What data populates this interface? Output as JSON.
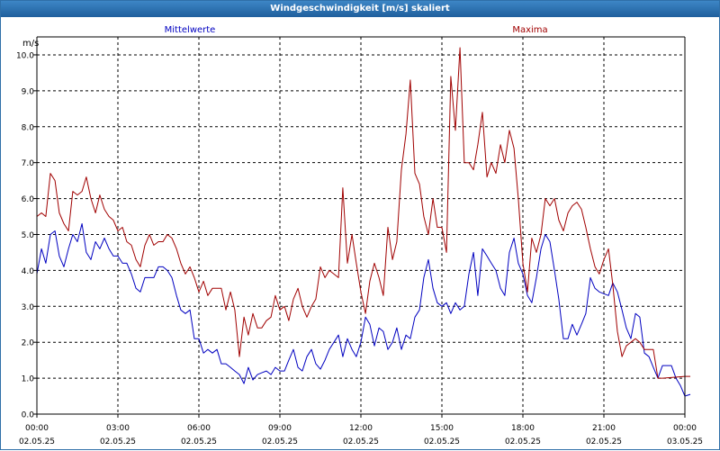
{
  "window": {
    "title": "Windgeschwindigkeit [m/s] skaliert"
  },
  "chart_data": {
    "type": "line",
    "title": "Windgeschwindigkeit [m/s] skaliert",
    "ylabel": "m/s",
    "xlabel": "",
    "ylim": [
      0,
      10.5
    ],
    "xlim": [
      0,
      24
    ],
    "grid": true,
    "x_ticks": [
      {
        "x": 0,
        "time": "00:00",
        "date": "02.05.25"
      },
      {
        "x": 3,
        "time": "03:00",
        "date": "02.05.25"
      },
      {
        "x": 6,
        "time": "06:00",
        "date": "02.05.25"
      },
      {
        "x": 9,
        "time": "09:00",
        "date": "02.05.25"
      },
      {
        "x": 12,
        "time": "12:00",
        "date": "02.05.25"
      },
      {
        "x": 15,
        "time": "15:00",
        "date": "02.05.25"
      },
      {
        "x": 18,
        "time": "18:00",
        "date": "02.05.25"
      },
      {
        "x": 21,
        "time": "21:00",
        "date": "02.05.25"
      },
      {
        "x": 24,
        "time": "00:00",
        "date": "03.05.25"
      }
    ],
    "y_ticks": [
      "0.0",
      "1.0",
      "2.0",
      "3.0",
      "4.0",
      "5.0",
      "6.0",
      "7.0",
      "8.0",
      "9.0",
      "10.0"
    ],
    "series": [
      {
        "name": "Mittelwerte",
        "color": "#0000c0",
        "points": [
          [
            0,
            3.9
          ],
          [
            0.17,
            4.6
          ],
          [
            0.33,
            4.2
          ],
          [
            0.5,
            5.0
          ],
          [
            0.67,
            5.1
          ],
          [
            0.83,
            4.4
          ],
          [
            1.0,
            4.1
          ],
          [
            1.17,
            4.6
          ],
          [
            1.33,
            5.0
          ],
          [
            1.5,
            4.8
          ],
          [
            1.67,
            5.3
          ],
          [
            1.83,
            4.5
          ],
          [
            2.0,
            4.3
          ],
          [
            2.17,
            4.8
          ],
          [
            2.33,
            4.6
          ],
          [
            2.5,
            4.9
          ],
          [
            2.67,
            4.6
          ],
          [
            2.83,
            4.4
          ],
          [
            3.0,
            4.4
          ],
          [
            3.17,
            4.2
          ],
          [
            3.33,
            4.2
          ],
          [
            3.5,
            3.9
          ],
          [
            3.67,
            3.5
          ],
          [
            3.83,
            3.4
          ],
          [
            4.0,
            3.8
          ],
          [
            4.17,
            3.8
          ],
          [
            4.33,
            3.8
          ],
          [
            4.5,
            4.1
          ],
          [
            4.67,
            4.1
          ],
          [
            4.83,
            4.0
          ],
          [
            5.0,
            3.8
          ],
          [
            5.17,
            3.3
          ],
          [
            5.33,
            2.9
          ],
          [
            5.5,
            2.8
          ],
          [
            5.67,
            2.9
          ],
          [
            5.83,
            2.1
          ],
          [
            6.0,
            2.1
          ],
          [
            6.17,
            1.7
          ],
          [
            6.33,
            1.8
          ],
          [
            6.5,
            1.7
          ],
          [
            6.67,
            1.8
          ],
          [
            6.83,
            1.4
          ],
          [
            7.0,
            1.4
          ],
          [
            7.17,
            1.3
          ],
          [
            7.33,
            1.2
          ],
          [
            7.5,
            1.1
          ],
          [
            7.67,
            0.85
          ],
          [
            7.83,
            1.3
          ],
          [
            8.0,
            0.95
          ],
          [
            8.17,
            1.1
          ],
          [
            8.33,
            1.15
          ],
          [
            8.5,
            1.2
          ],
          [
            8.67,
            1.1
          ],
          [
            8.83,
            1.3
          ],
          [
            9.0,
            1.2
          ],
          [
            9.17,
            1.2
          ],
          [
            9.33,
            1.5
          ],
          [
            9.5,
            1.8
          ],
          [
            9.67,
            1.3
          ],
          [
            9.83,
            1.2
          ],
          [
            10.0,
            1.6
          ],
          [
            10.17,
            1.8
          ],
          [
            10.33,
            1.4
          ],
          [
            10.5,
            1.25
          ],
          [
            10.67,
            1.5
          ],
          [
            10.83,
            1.8
          ],
          [
            11.0,
            2.0
          ],
          [
            11.17,
            2.2
          ],
          [
            11.33,
            1.6
          ],
          [
            11.5,
            2.1
          ],
          [
            11.67,
            1.8
          ],
          [
            11.83,
            1.6
          ],
          [
            12.0,
            2.0
          ],
          [
            12.17,
            2.7
          ],
          [
            12.33,
            2.5
          ],
          [
            12.5,
            1.9
          ],
          [
            12.67,
            2.4
          ],
          [
            12.83,
            2.3
          ],
          [
            13.0,
            1.8
          ],
          [
            13.17,
            2.0
          ],
          [
            13.33,
            2.4
          ],
          [
            13.5,
            1.8
          ],
          [
            13.67,
            2.2
          ],
          [
            13.83,
            2.1
          ],
          [
            14.0,
            2.7
          ],
          [
            14.17,
            2.9
          ],
          [
            14.33,
            3.8
          ],
          [
            14.5,
            4.3
          ],
          [
            14.67,
            3.5
          ],
          [
            14.83,
            3.1
          ],
          [
            15.0,
            3.0
          ],
          [
            15.17,
            3.1
          ],
          [
            15.33,
            2.8
          ],
          [
            15.5,
            3.1
          ],
          [
            15.67,
            2.9
          ],
          [
            15.83,
            3.0
          ],
          [
            16.0,
            3.9
          ],
          [
            16.17,
            4.5
          ],
          [
            16.33,
            3.3
          ],
          [
            16.5,
            4.6
          ],
          [
            16.67,
            4.4
          ],
          [
            16.83,
            4.2
          ],
          [
            17.0,
            4.0
          ],
          [
            17.17,
            3.5
          ],
          [
            17.33,
            3.3
          ],
          [
            17.5,
            4.5
          ],
          [
            17.67,
            4.9
          ],
          [
            17.83,
            4.2
          ],
          [
            18.0,
            3.9
          ],
          [
            18.17,
            3.3
          ],
          [
            18.33,
            3.1
          ],
          [
            18.5,
            3.8
          ],
          [
            18.67,
            4.6
          ],
          [
            18.83,
            5.0
          ],
          [
            19.0,
            4.8
          ],
          [
            19.17,
            4.0
          ],
          [
            19.33,
            3.2
          ],
          [
            19.5,
            2.1
          ],
          [
            19.67,
            2.1
          ],
          [
            19.83,
            2.5
          ],
          [
            20.0,
            2.2
          ],
          [
            20.17,
            2.5
          ],
          [
            20.33,
            2.8
          ],
          [
            20.5,
            3.8
          ],
          [
            20.67,
            3.5
          ],
          [
            20.83,
            3.4
          ],
          [
            21.0,
            3.35
          ],
          [
            21.17,
            3.3
          ],
          [
            21.33,
            3.65
          ],
          [
            21.5,
            3.4
          ],
          [
            21.67,
            2.9
          ],
          [
            21.83,
            2.4
          ],
          [
            22.0,
            2.1
          ],
          [
            22.17,
            2.8
          ],
          [
            22.33,
            2.7
          ],
          [
            22.5,
            1.7
          ],
          [
            22.67,
            1.6
          ],
          [
            22.83,
            1.3
          ],
          [
            23.0,
            1.0
          ],
          [
            23.17,
            1.35
          ],
          [
            23.33,
            1.35
          ],
          [
            23.5,
            1.35
          ],
          [
            23.67,
            1.0
          ],
          [
            23.83,
            0.8
          ],
          [
            24.0,
            0.5
          ],
          [
            24.2,
            0.55
          ]
        ]
      },
      {
        "name": "Maxima",
        "color": "#a00000",
        "points": [
          [
            0,
            5.5
          ],
          [
            0.17,
            5.6
          ],
          [
            0.33,
            5.5
          ],
          [
            0.5,
            6.7
          ],
          [
            0.67,
            6.5
          ],
          [
            0.83,
            5.6
          ],
          [
            1.0,
            5.3
          ],
          [
            1.17,
            5.1
          ],
          [
            1.33,
            6.2
          ],
          [
            1.5,
            6.1
          ],
          [
            1.67,
            6.2
          ],
          [
            1.83,
            6.6
          ],
          [
            2.0,
            6.0
          ],
          [
            2.17,
            5.6
          ],
          [
            2.33,
            6.1
          ],
          [
            2.5,
            5.7
          ],
          [
            2.67,
            5.5
          ],
          [
            2.83,
            5.4
          ],
          [
            3.0,
            5.1
          ],
          [
            3.17,
            5.2
          ],
          [
            3.33,
            4.8
          ],
          [
            3.5,
            4.7
          ],
          [
            3.67,
            4.3
          ],
          [
            3.83,
            4.1
          ],
          [
            4.0,
            4.7
          ],
          [
            4.17,
            5.0
          ],
          [
            4.33,
            4.7
          ],
          [
            4.5,
            4.8
          ],
          [
            4.67,
            4.8
          ],
          [
            4.83,
            5.0
          ],
          [
            5.0,
            4.9
          ],
          [
            5.17,
            4.6
          ],
          [
            5.33,
            4.2
          ],
          [
            5.5,
            3.9
          ],
          [
            5.67,
            4.1
          ],
          [
            5.83,
            3.8
          ],
          [
            6.0,
            3.4
          ],
          [
            6.17,
            3.7
          ],
          [
            6.33,
            3.3
          ],
          [
            6.5,
            3.5
          ],
          [
            6.67,
            3.5
          ],
          [
            6.83,
            3.5
          ],
          [
            7.0,
            2.9
          ],
          [
            7.17,
            3.4
          ],
          [
            7.33,
            2.9
          ],
          [
            7.5,
            1.6
          ],
          [
            7.67,
            2.7
          ],
          [
            7.83,
            2.2
          ],
          [
            8.0,
            2.8
          ],
          [
            8.17,
            2.4
          ],
          [
            8.33,
            2.4
          ],
          [
            8.5,
            2.6
          ],
          [
            8.67,
            2.7
          ],
          [
            8.83,
            3.3
          ],
          [
            9.0,
            2.9
          ],
          [
            9.17,
            3.0
          ],
          [
            9.33,
            2.6
          ],
          [
            9.5,
            3.2
          ],
          [
            9.67,
            3.5
          ],
          [
            9.83,
            3.0
          ],
          [
            10.0,
            2.7
          ],
          [
            10.17,
            3.0
          ],
          [
            10.33,
            3.2
          ],
          [
            10.5,
            4.1
          ],
          [
            10.67,
            3.8
          ],
          [
            10.83,
            4.0
          ],
          [
            11.0,
            3.9
          ],
          [
            11.17,
            3.8
          ],
          [
            11.33,
            6.3
          ],
          [
            11.5,
            4.2
          ],
          [
            11.67,
            5.0
          ],
          [
            11.83,
            4.2
          ],
          [
            12.0,
            3.4
          ],
          [
            12.17,
            2.8
          ],
          [
            12.33,
            3.7
          ],
          [
            12.5,
            4.2
          ],
          [
            12.67,
            3.8
          ],
          [
            12.83,
            3.3
          ],
          [
            13.0,
            5.2
          ],
          [
            13.17,
            4.3
          ],
          [
            13.33,
            4.8
          ],
          [
            13.5,
            6.8
          ],
          [
            13.67,
            7.8
          ],
          [
            13.83,
            9.3
          ],
          [
            14.0,
            6.7
          ],
          [
            14.17,
            6.4
          ],
          [
            14.33,
            5.5
          ],
          [
            14.5,
            5.0
          ],
          [
            14.67,
            6.0
          ],
          [
            14.83,
            5.2
          ],
          [
            15.0,
            5.2
          ],
          [
            15.17,
            4.5
          ],
          [
            15.33,
            9.4
          ],
          [
            15.5,
            7.9
          ],
          [
            15.67,
            10.2
          ],
          [
            15.83,
            7.0
          ],
          [
            16.0,
            7.0
          ],
          [
            16.17,
            6.8
          ],
          [
            16.33,
            7.5
          ],
          [
            16.5,
            8.4
          ],
          [
            16.67,
            6.6
          ],
          [
            16.83,
            7.0
          ],
          [
            17.0,
            6.7
          ],
          [
            17.17,
            7.5
          ],
          [
            17.33,
            7.0
          ],
          [
            17.5,
            7.9
          ],
          [
            17.67,
            7.4
          ],
          [
            17.83,
            6.0
          ],
          [
            18.0,
            4.2
          ],
          [
            18.17,
            3.4
          ],
          [
            18.33,
            4.9
          ],
          [
            18.5,
            4.5
          ],
          [
            18.67,
            5.0
          ],
          [
            18.83,
            6.0
          ],
          [
            19.0,
            5.8
          ],
          [
            19.17,
            6.0
          ],
          [
            19.33,
            5.4
          ],
          [
            19.5,
            5.1
          ],
          [
            19.67,
            5.6
          ],
          [
            19.83,
            5.8
          ],
          [
            20.0,
            5.9
          ],
          [
            20.17,
            5.7
          ],
          [
            20.33,
            5.2
          ],
          [
            20.5,
            4.6
          ],
          [
            20.67,
            4.1
          ],
          [
            20.83,
            3.9
          ],
          [
            21.0,
            4.3
          ],
          [
            21.17,
            4.6
          ],
          [
            21.33,
            3.6
          ],
          [
            21.5,
            2.3
          ],
          [
            21.67,
            1.6
          ],
          [
            21.83,
            1.9
          ],
          [
            22.0,
            2.0
          ],
          [
            22.17,
            2.1
          ],
          [
            22.33,
            2.0
          ],
          [
            22.5,
            1.8
          ],
          [
            22.67,
            1.8
          ],
          [
            22.83,
            1.8
          ],
          [
            23.0,
            1.0
          ],
          [
            23.17,
            1.0
          ],
          [
            24.0,
            1.05
          ],
          [
            24.2,
            1.05
          ]
        ]
      }
    ]
  }
}
